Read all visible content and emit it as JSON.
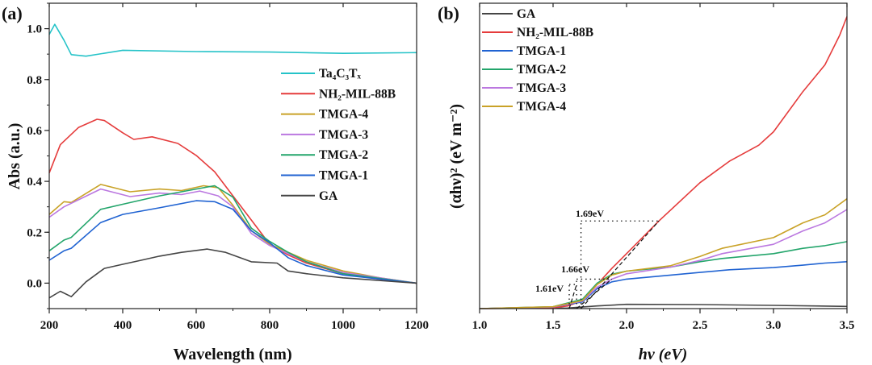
{
  "chart_data": [
    {
      "type": "line",
      "panel_label": "(a)",
      "xlabel": "Wavelength (nm)",
      "ylabel": "Abs (a.u.)",
      "xlim": [
        200,
        1200
      ],
      "ylim": [
        -0.1,
        1.1
      ],
      "xticks": [
        "200",
        "400",
        "600",
        "800",
        "1000",
        "1200"
      ],
      "yticks": [
        "0.0",
        "0.2",
        "0.4",
        "0.6",
        "0.8",
        "1.0"
      ],
      "legend_position": "right",
      "grid": false,
      "series": [
        {
          "name": "Ta₄C₃Tₓ",
          "color": "#25c3c8",
          "x": [
            200,
            215,
            240,
            260,
            300,
            400,
            600,
            800,
            1000,
            1200
          ],
          "y": [
            0.977,
            1.017,
            0.955,
            0.898,
            0.892,
            0.915,
            0.91,
            0.908,
            0.903,
            0.906
          ]
        },
        {
          "name": "NH₂-MIL-88B",
          "color": "#e53c3c",
          "x": [
            200,
            230,
            280,
            330,
            350,
            400,
            430,
            480,
            550,
            600,
            650,
            700,
            750,
            800,
            850,
            900,
            1000,
            1100,
            1200
          ],
          "y": [
            0.433,
            0.544,
            0.612,
            0.644,
            0.639,
            0.591,
            0.565,
            0.575,
            0.549,
            0.502,
            0.438,
            0.343,
            0.248,
            0.153,
            0.111,
            0.079,
            0.037,
            0.016,
            0.0
          ]
        },
        {
          "name": "TMGA-4",
          "color": "#c9a227",
          "x": [
            200,
            240,
            260,
            340,
            420,
            500,
            560,
            620,
            660,
            700,
            750,
            800,
            900,
            1000,
            1100,
            1200
          ],
          "y": [
            0.27,
            0.32,
            0.317,
            0.388,
            0.359,
            0.37,
            0.364,
            0.383,
            0.375,
            0.306,
            0.206,
            0.153,
            0.09,
            0.048,
            0.021,
            0.0
          ]
        },
        {
          "name": "TMGA-3",
          "color": "#bb78e0",
          "x": [
            200,
            240,
            340,
            420,
            500,
            560,
            610,
            660,
            700,
            750,
            800,
            900,
            1000,
            1200
          ],
          "y": [
            0.259,
            0.3,
            0.37,
            0.34,
            0.354,
            0.348,
            0.362,
            0.343,
            0.3,
            0.195,
            0.148,
            0.084,
            0.042,
            0.0
          ]
        },
        {
          "name": "TMGA-2",
          "color": "#23a56b",
          "x": [
            200,
            240,
            260,
            340,
            400,
            500,
            600,
            650,
            700,
            750,
            800,
            850,
            900,
            1000,
            1200
          ],
          "y": [
            0.127,
            0.169,
            0.18,
            0.29,
            0.31,
            0.343,
            0.37,
            0.383,
            0.338,
            0.216,
            0.164,
            0.121,
            0.084,
            0.037,
            0.0
          ]
        },
        {
          "name": "TMGA-1",
          "color": "#2063d2",
          "x": [
            200,
            240,
            260,
            340,
            400,
            500,
            600,
            650,
            700,
            750,
            800,
            850,
            900,
            1000,
            1200
          ],
          "y": [
            0.09,
            0.127,
            0.137,
            0.238,
            0.27,
            0.296,
            0.324,
            0.32,
            0.29,
            0.206,
            0.159,
            0.1,
            0.069,
            0.032,
            0.0
          ]
        },
        {
          "name": "GA",
          "color": "#454545",
          "x": [
            200,
            230,
            260,
            300,
            350,
            400,
            450,
            500,
            560,
            630,
            680,
            750,
            820,
            850,
            900,
            1000,
            1200
          ],
          "y": [
            -0.058,
            -0.032,
            -0.053,
            0.005,
            0.058,
            0.074,
            0.09,
            0.106,
            0.121,
            0.134,
            0.121,
            0.084,
            0.079,
            0.048,
            0.037,
            0.021,
            0.0
          ]
        }
      ]
    },
    {
      "type": "line",
      "panel_label": "(b)",
      "xlabel": "hν (eV)",
      "ylabel": "(αhν)² (eV m⁻²)",
      "xlim": [
        1.0,
        3.5
      ],
      "ylim": [
        0,
        114
      ],
      "xticks": [
        "1.0",
        "1.5",
        "2.0",
        "2.5",
        "3.0",
        "3.5"
      ],
      "yticks": [],
      "legend_position": "top-left",
      "grid": false,
      "series": [
        {
          "name": "GA",
          "color": "#454545",
          "x": [
            1.0,
            1.6,
            1.8,
            2.0,
            2.5,
            3.0,
            3.5
          ],
          "y": [
            0,
            0.2,
            1,
            1.6,
            1.5,
            1.2,
            0.8
          ]
        },
        {
          "name": "NH₂-MIL-88B",
          "color": "#e53c3c",
          "x": [
            1.0,
            1.5,
            1.6,
            1.7,
            1.8,
            1.9,
            2.0,
            2.22,
            2.5,
            2.7,
            2.9,
            3.0,
            3.2,
            3.35,
            3.45,
            3.5
          ],
          "y": [
            0,
            0.3,
            1,
            3,
            9,
            15,
            20.5,
            32.7,
            47,
            55,
            61,
            66,
            81,
            91,
            102,
            109
          ]
        },
        {
          "name": "TMGA-1",
          "color": "#2063d2",
          "x": [
            1.0,
            1.5,
            1.7,
            1.8,
            1.9,
            2.0,
            2.3,
            2.5,
            2.7,
            3.0,
            3.2,
            3.35,
            3.5
          ],
          "y": [
            0,
            0.6,
            2.5,
            7.5,
            10,
            11,
            12.5,
            13.5,
            14.5,
            15.3,
            16.2,
            17,
            17.5
          ]
        },
        {
          "name": "TMGA-2",
          "color": "#23a56b",
          "x": [
            1.0,
            1.5,
            1.7,
            1.8,
            1.9,
            2.0,
            2.3,
            2.5,
            2.65,
            3.0,
            3.2,
            3.35,
            3.5
          ],
          "y": [
            0,
            0.7,
            3.5,
            9.5,
            12.8,
            14,
            15.5,
            17.5,
            18.7,
            20.5,
            22.5,
            23.5,
            25
          ]
        },
        {
          "name": "TMGA-3",
          "color": "#bb78e0",
          "x": [
            1.0,
            1.5,
            1.7,
            1.8,
            1.9,
            2.0,
            2.3,
            2.5,
            2.65,
            3.0,
            3.2,
            3.35,
            3.5
          ],
          "y": [
            0,
            0.6,
            2.8,
            8,
            11,
            13,
            15.5,
            18,
            20.5,
            24,
            29,
            32,
            37
          ]
        },
        {
          "name": "TMGA-4",
          "color": "#c9a227",
          "x": [
            1.0,
            1.5,
            1.7,
            1.8,
            1.9,
            2.0,
            2.3,
            2.5,
            2.65,
            3.0,
            3.2,
            3.35,
            3.5
          ],
          "y": [
            0,
            0.7,
            3,
            9,
            12.5,
            14,
            16,
            19.5,
            22.5,
            26.5,
            32,
            35,
            41
          ]
        }
      ],
      "annotations": [
        {
          "label": "1.69eV",
          "x": 1.69,
          "y_top": 32.7,
          "x_end": 2.22
        },
        {
          "label": "1.66eV",
          "x": 1.66,
          "y_top": 11,
          "x_end": 1.9
        },
        {
          "label": "1.61eV",
          "x": 1.61,
          "y_top": 9,
          "x_end": 1.66
        }
      ]
    }
  ]
}
